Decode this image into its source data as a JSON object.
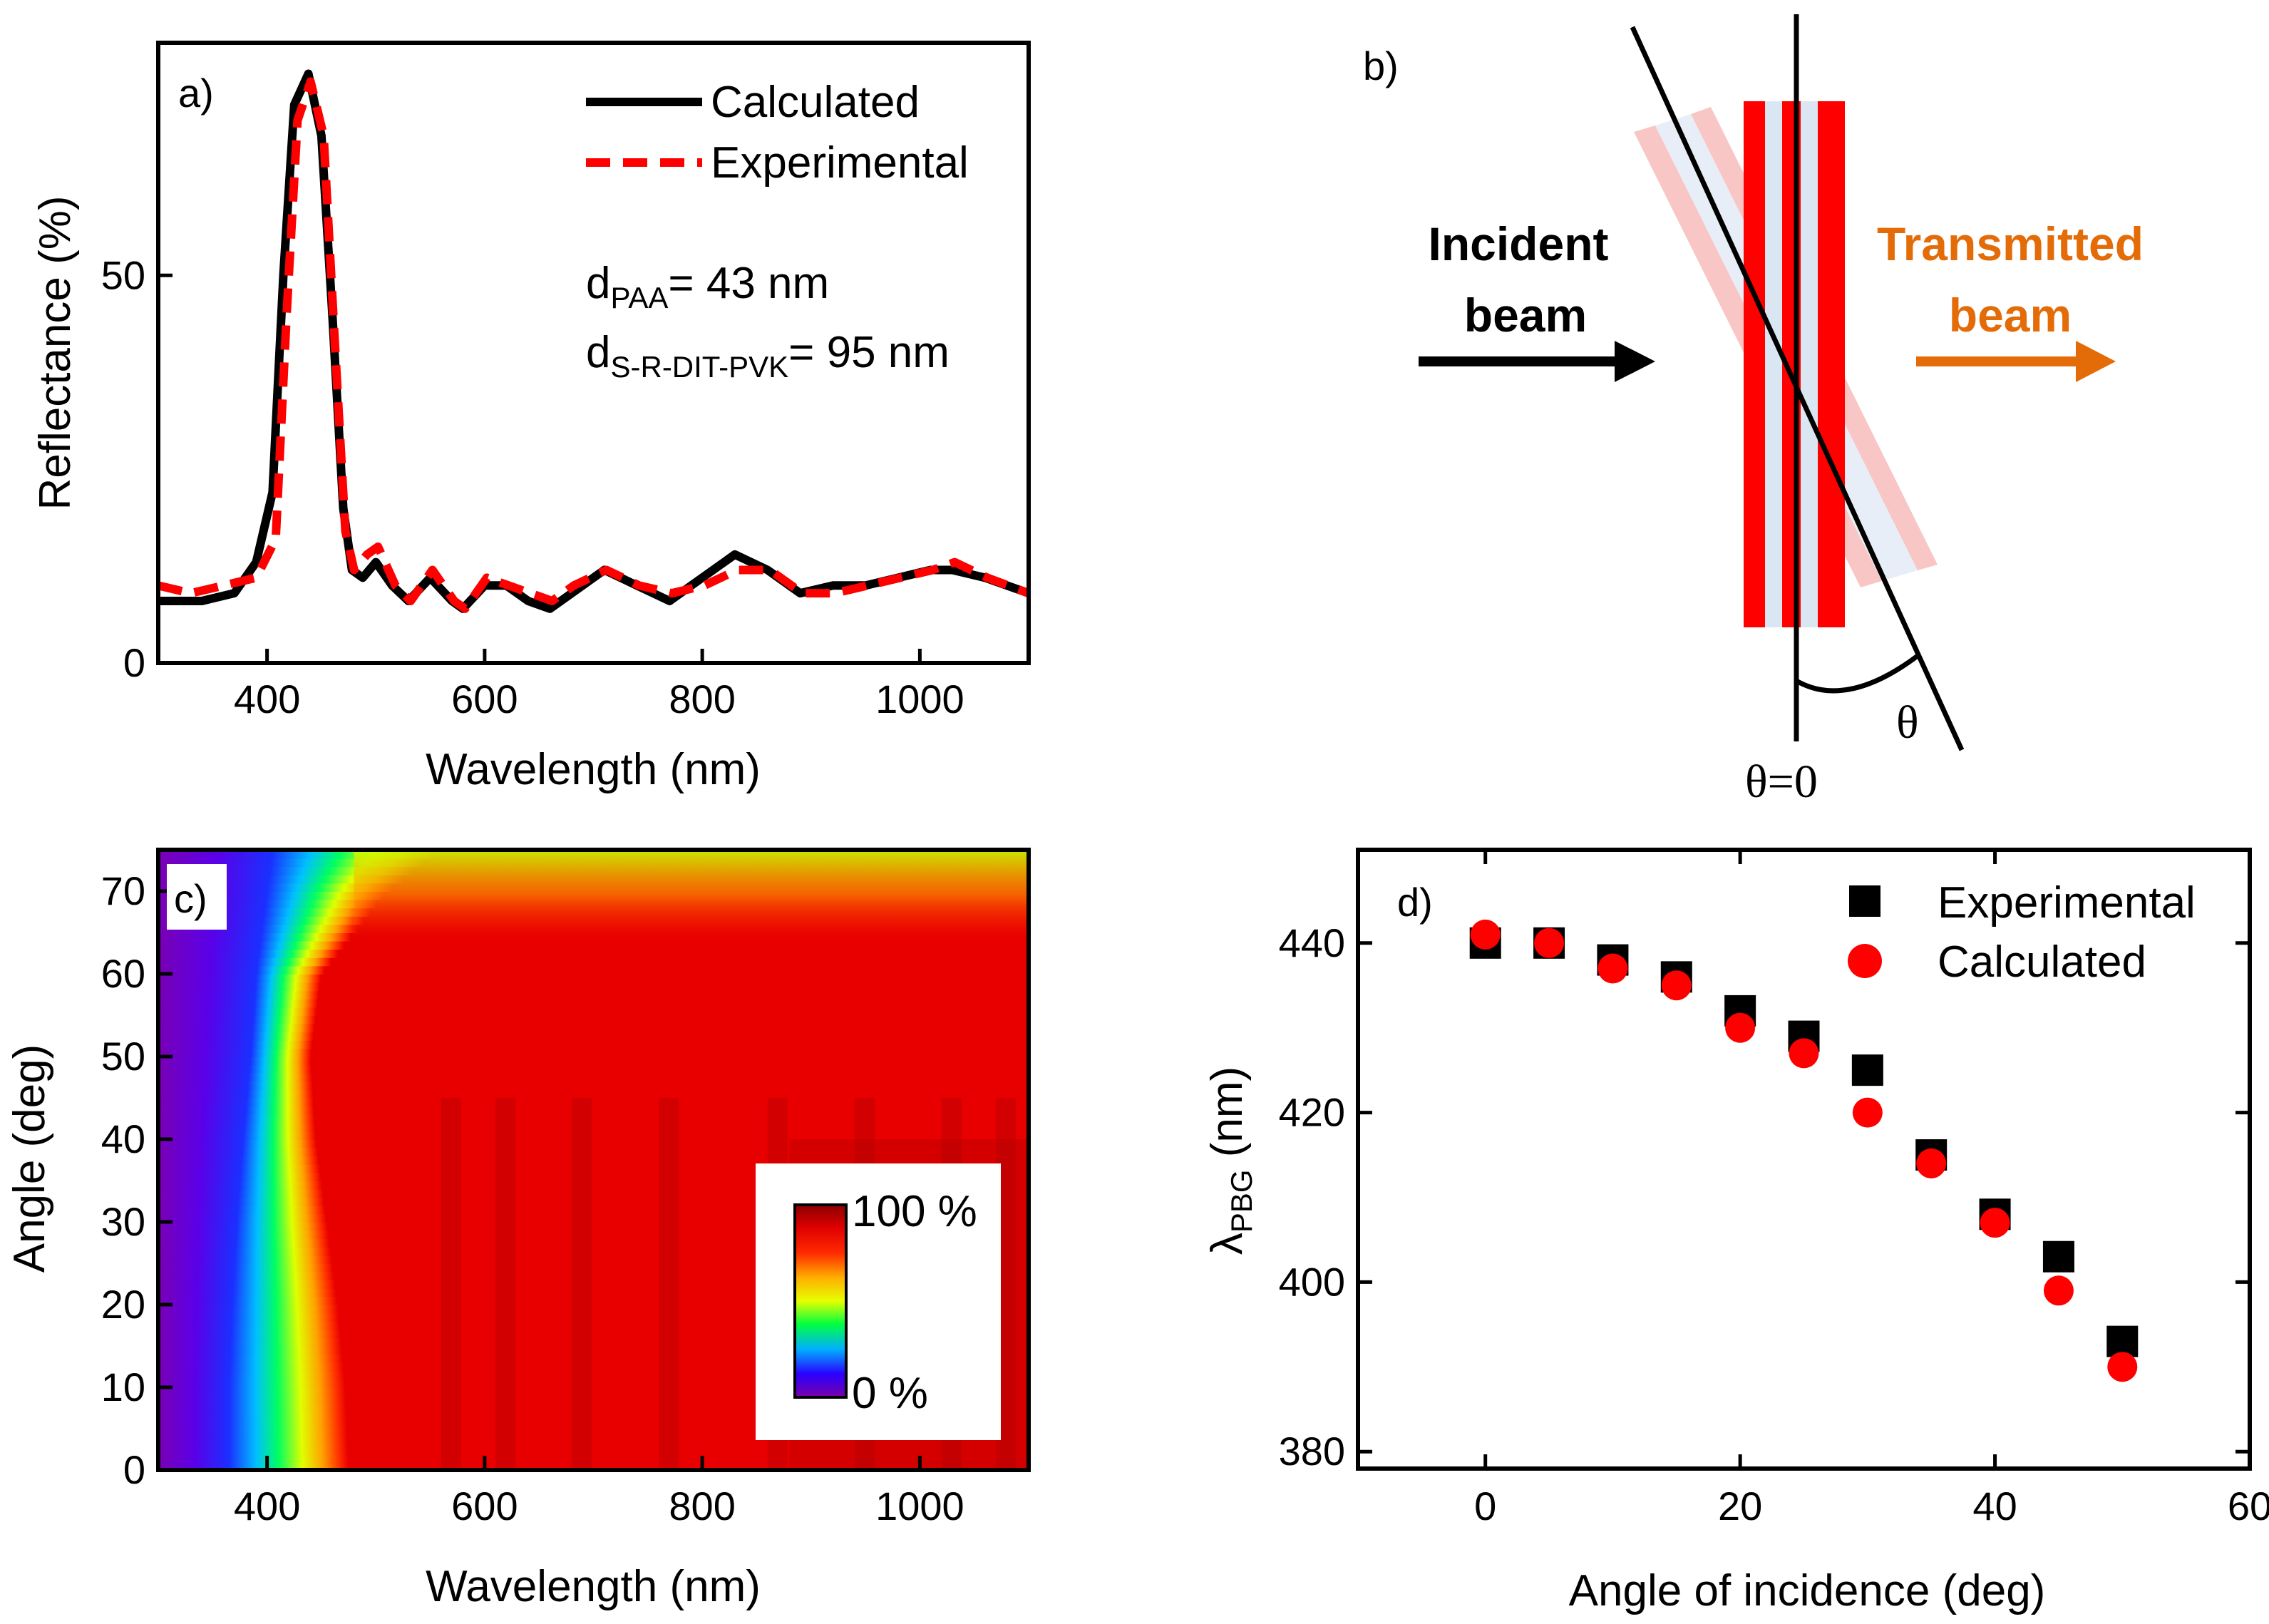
{
  "panels": {
    "a": {
      "label": "a)"
    },
    "b": {
      "label": "b)"
    },
    "c": {
      "label": "c)"
    },
    "d": {
      "label": "d)"
    }
  },
  "annotations": {
    "d_paa_main": "d",
    "d_paa_sub": "PAA",
    "d_paa_value": "= 43 nm",
    "d_pvk_main": "d",
    "d_pvk_sub": "S-R-DIT-PVK",
    "d_pvk_value": "= 95 nm"
  },
  "diagram": {
    "incident_line1": "Incident",
    "incident_line2": "beam",
    "transmitted_line1": "Transmitted",
    "transmitted_line2": "beam",
    "theta": "θ",
    "theta_zero": "θ=0",
    "colors": {
      "layer_red": "#ff0000",
      "layer_light": "#dbe6f3",
      "ghost": "#f9c6c6",
      "orange": "#e36c09"
    }
  },
  "colorbar": {
    "max_label": "100 %",
    "min_label": "0 %"
  },
  "chart_data": [
    {
      "id": "a",
      "type": "line",
      "title": "",
      "xlabel": "Wavelength (nm)",
      "ylabel": "Reflectance (%)",
      "xlim": [
        300,
        1100
      ],
      "ylim": [
        0,
        80
      ],
      "xticks": [
        400,
        600,
        800,
        1000
      ],
      "yticks": [
        0,
        50
      ],
      "series": [
        {
          "name": "Calculated",
          "color": "#000000",
          "style": "solid",
          "x": [
            300,
            340,
            370,
            390,
            405,
            415,
            425,
            438,
            450,
            460,
            470,
            478,
            488,
            500,
            515,
            530,
            550,
            570,
            580,
            600,
            620,
            640,
            660,
            680,
            710,
            740,
            770,
            800,
            830,
            860,
            890,
            920,
            950,
            980,
            1010,
            1030,
            1060,
            1100
          ],
          "y": [
            8,
            8,
            9,
            13,
            22,
            50,
            72,
            76,
            68,
            45,
            20,
            12,
            11,
            13,
            10,
            8,
            11,
            8,
            7,
            10,
            10,
            8,
            7,
            9,
            12,
            10,
            8,
            11,
            14,
            12,
            9,
            10,
            10,
            11,
            12,
            12,
            11,
            9
          ]
        },
        {
          "name": "Experimental",
          "color": "#ff0000",
          "style": "dashed",
          "x": [
            300,
            330,
            360,
            390,
            408,
            418,
            428,
            440,
            452,
            462,
            472,
            480,
            492,
            502,
            518,
            532,
            552,
            572,
            582,
            602,
            622,
            642,
            662,
            682,
            712,
            742,
            772,
            802,
            832,
            862,
            892,
            922,
            952,
            982,
            1012,
            1032,
            1062,
            1100
          ],
          "y": [
            10,
            9,
            10,
            11,
            16,
            45,
            70,
            75,
            68,
            42,
            17,
            12,
            14,
            15,
            10,
            8,
            12,
            8,
            7,
            11,
            10,
            9,
            8,
            10,
            12,
            10,
            9,
            10,
            12,
            12,
            9,
            9,
            10,
            11,
            12,
            13,
            11,
            9
          ]
        }
      ]
    },
    {
      "id": "c",
      "type": "heatmap",
      "xlabel": "Wavelength (nm)",
      "ylabel": "Angle (deg)",
      "xlim": [
        300,
        1100
      ],
      "ylim": [
        0,
        75
      ],
      "xticks": [
        400,
        600,
        800,
        1000
      ],
      "yticks": [
        0,
        10,
        20,
        30,
        40,
        50,
        60,
        70
      ],
      "colorscale_range_percent": [
        0,
        100
      ],
      "band_edge": {
        "angle": [
          0,
          10,
          20,
          30,
          40,
          50,
          60,
          70,
          75
        ],
        "short_edge_nm": [
          365,
          365,
          368,
          372,
          378,
          385,
          390,
          400,
          405
        ],
        "long_edge_nm": [
          475,
          472,
          465,
          455,
          445,
          440,
          450,
          510,
          560
        ]
      }
    },
    {
      "id": "d",
      "type": "scatter",
      "xlabel": "Angle of incidence (deg)",
      "ylabel": "λPBG (nm)",
      "ylabel_main": "λ",
      "ylabel_sub": "PBG",
      "ylabel_tail": " (nm)",
      "xlim": [
        -10,
        60
      ],
      "ylim": [
        378,
        451
      ],
      "xticks": [
        0,
        20,
        40,
        60
      ],
      "yticks": [
        380,
        400,
        420,
        440
      ],
      "series": [
        {
          "name": "Experimental",
          "marker": "square",
          "color": "#000000",
          "x": [
            0,
            5,
            10,
            15,
            20,
            25,
            30,
            35,
            40,
            45,
            50
          ],
          "y": [
            440,
            440,
            438,
            436,
            432,
            429,
            425,
            415,
            408,
            403,
            393
          ]
        },
        {
          "name": "Calculated",
          "marker": "circle",
          "color": "#ff0000",
          "x": [
            0,
            5,
            10,
            15,
            20,
            25,
            30,
            35,
            40,
            45,
            50
          ],
          "y": [
            441,
            440,
            437,
            435,
            430,
            427,
            420,
            414,
            407,
            399,
            390
          ]
        }
      ]
    }
  ]
}
